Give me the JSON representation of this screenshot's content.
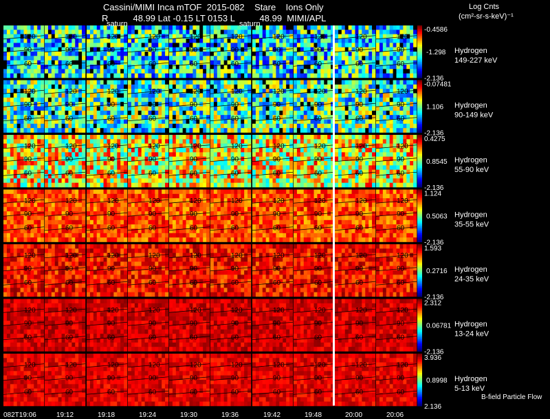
{
  "header": {
    "title_line1": "Cassini/MIMI Inca mTOF  2015-082    Stare    Ions Only",
    "title_line2": "R          48.99 Lat -0.15 LT 0153 L          48.99  MIMI/APL",
    "saturn_label": "saturn",
    "legend_title": "Log Cnts",
    "legend_units": "(cm²-sr-s-keV)⁻¹"
  },
  "footer": {
    "note": "B-field Particle Flow"
  },
  "chart_data": {
    "type": "heatmap",
    "title": "Cassini/MIMI Inca mTOF  2015-082    Stare    Ions Only",
    "x_tick_labels": [
      "082T19:06",
      "19:12",
      "19:18",
      "19:24",
      "19:30",
      "19:36",
      "19:42",
      "19:48",
      "20:00",
      "20:06"
    ],
    "contour_labels": [
      "120",
      "90",
      "60"
    ],
    "rows": [
      {
        "species": "Hydrogen",
        "energy": "149-227 keV",
        "cmax": "-0.4586",
        "cmid": "-1.298",
        "cmin": "-2.136"
      },
      {
        "species": "Hydrogen",
        "energy": "90-149 keV",
        "cmax": "-0.07481",
        "cmid": "1.106",
        "cmin": "-2.136"
      },
      {
        "species": "Hydrogen",
        "energy": "55-90 keV",
        "cmax": "0.4275",
        "cmid": "0.8545",
        "cmin": "-2.136"
      },
      {
        "species": "Hydrogen",
        "energy": "35-55 keV",
        "cmax": "1.124",
        "cmid": "0.5063",
        "cmin": "-2.136"
      },
      {
        "species": "Hydrogen",
        "energy": "24-35 keV",
        "cmax": "1.593",
        "cmid": "0.2716",
        "cmin": "-2.136"
      },
      {
        "species": "Hydrogen",
        "energy": "13-24 keV",
        "cmax": "2.312",
        "cmid": "0.06781",
        "cmin": "-2.136"
      },
      {
        "species": "Hydrogen",
        "energy": "5-13 keV",
        "cmax": "3.936",
        "cmid": "0.8998",
        "cmin": "2.136"
      }
    ],
    "row_intensity": [
      0.38,
      0.45,
      0.62,
      0.8,
      0.87,
      0.92,
      0.9
    ],
    "colorbar": [
      "#ffffff",
      "#ff0000",
      "#ff8000",
      "#ffff00",
      "#00ff00",
      "#00ffff",
      "#0080ff",
      "#0000ff",
      "#800080"
    ],
    "colors": {
      "background": "#000000",
      "divider": "#ffffff",
      "contour": "#000000"
    }
  }
}
